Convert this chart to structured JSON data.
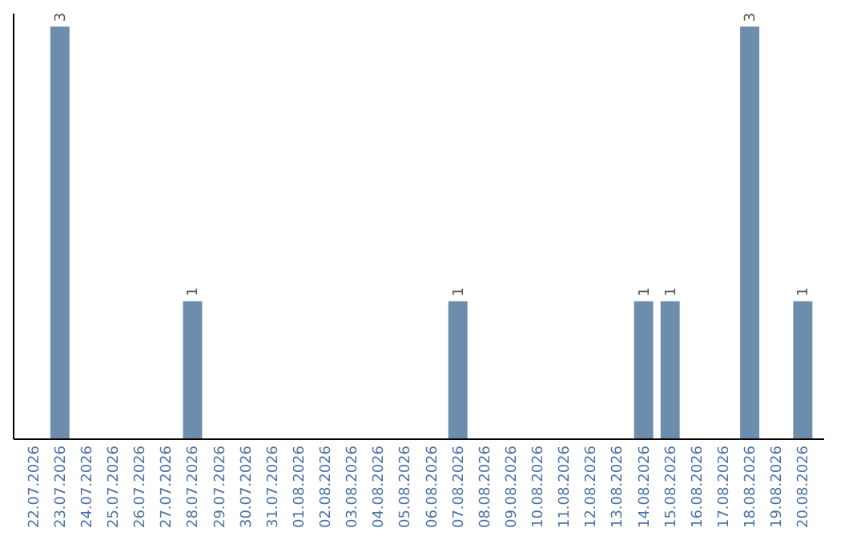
{
  "chart_data": {
    "type": "bar",
    "categories": [
      "22.07.2026",
      "23.07.2026",
      "24.07.2026",
      "25.07.2026",
      "26.07.2026",
      "27.07.2026",
      "28.07.2026",
      "29.07.2026",
      "30.07.2026",
      "31.07.2026",
      "01.08.2026",
      "02.08.2026",
      "03.08.2026",
      "04.08.2026",
      "05.08.2026",
      "06.08.2026",
      "07.08.2026",
      "08.08.2026",
      "09.08.2026",
      "10.08.2026",
      "11.08.2026",
      "12.08.2026",
      "13.08.2026",
      "14.08.2026",
      "15.08.2026",
      "16.08.2026",
      "17.08.2026",
      "18.08.2026",
      "19.08.2026",
      "20.08.2026"
    ],
    "values": [
      0,
      3,
      0,
      0,
      0,
      0,
      1,
      0,
      0,
      0,
      0,
      0,
      0,
      0,
      0,
      0,
      1,
      0,
      0,
      0,
      0,
      0,
      0,
      1,
      1,
      0,
      0,
      3,
      0,
      1
    ],
    "value_labels": [
      null,
      "3",
      null,
      null,
      null,
      null,
      "1",
      null,
      null,
      null,
      null,
      null,
      null,
      null,
      null,
      null,
      "1",
      null,
      null,
      null,
      null,
      null,
      null,
      "1",
      "1",
      null,
      null,
      "3",
      null,
      "1"
    ],
    "color": "#6d8dad",
    "ylim": [
      0,
      3.1
    ],
    "tick_labels": "x",
    "grid": false
  }
}
